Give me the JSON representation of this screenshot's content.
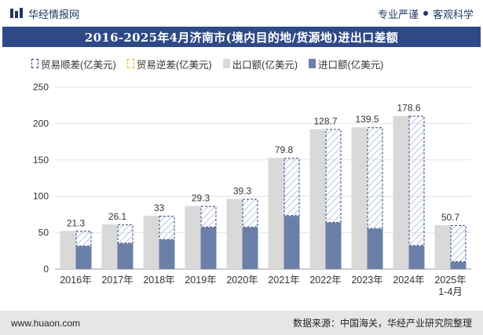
{
  "header": {
    "brand": "华经情报网",
    "tagline_left": "专业严谨",
    "tagline_right": "客观科学"
  },
  "chart_data": {
    "type": "bar",
    "title": "2016-2025年4月济南市(境内目的地/货源地)进出口差额",
    "categories": [
      "2016年",
      "2017年",
      "2018年",
      "2019年",
      "2020年",
      "2021年",
      "2022年",
      "2023年",
      "2024年",
      "2025年 1-4月"
    ],
    "series": [
      {
        "name": "贸易顺差(亿美元)",
        "values": [
          21.3,
          26.1,
          33,
          29.3,
          39.3,
          79.8,
          128.7,
          139.5,
          178.6,
          50.7
        ]
      },
      {
        "name": "贸易逆差(亿美元)",
        "values": [
          0,
          0,
          0,
          0,
          0,
          0,
          0,
          0,
          0,
          0
        ]
      },
      {
        "name": "出口额(亿美元)",
        "values": [
          52.5,
          61.3,
          73.2,
          86.6,
          96.5,
          152.8,
          192.3,
          194.8,
          210.5,
          60.5
        ]
      },
      {
        "name": "进口额(亿美元)",
        "values": [
          31.2,
          35.2,
          40.2,
          57.3,
          57.2,
          73.0,
          63.6,
          55.3,
          31.9,
          9.8
        ]
      }
    ],
    "data_labels": [
      "21.3",
      "26.1",
      "33",
      "29.3",
      "39.3",
      "79.8",
      "128.7",
      "139.5",
      "178.6",
      "50.7"
    ],
    "ylim": [
      0,
      250
    ],
    "yticks": [
      0,
      50,
      100,
      150,
      200,
      250
    ],
    "grid": true,
    "legend_position": "top",
    "colors": {
      "surplus_border": "#2e4a86",
      "deficit_border": "#e0b800",
      "export": "#d9d9d9",
      "import": "#6b7fa8"
    }
  },
  "footer": {
    "website": "www.huaon.com",
    "source": "数据来源：中国海关，华经产业研究院整理"
  }
}
